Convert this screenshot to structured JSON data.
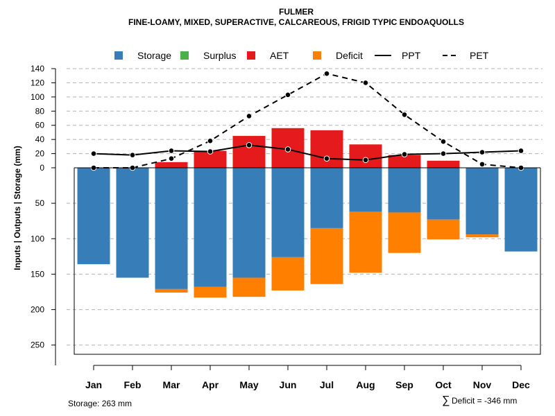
{
  "chart_data": {
    "type": "bar",
    "title": "FULMER",
    "subtitle": "FINE-LOAMY, MIXED, SUPERACTIVE, CALCAREOUS, FRIGID TYPIC ENDOAQUOLLS",
    "ylabel": "Inputs | Outputs | Storage     (mm)",
    "categories": [
      "Jan",
      "Feb",
      "Mar",
      "Apr",
      "May",
      "Jun",
      "Jul",
      "Aug",
      "Sep",
      "Oct",
      "Nov",
      "Dec"
    ],
    "upper_axis": {
      "ylim": [
        0,
        140
      ],
      "ticks": [
        0,
        20,
        40,
        60,
        80,
        100,
        120,
        140
      ]
    },
    "lower_axis": {
      "ylim": [
        0,
        263
      ],
      "ticks": [
        50,
        100,
        150,
        200,
        250
      ]
    },
    "legend": [
      {
        "name": "Storage",
        "kind": "box",
        "color": "#377eb8"
      },
      {
        "name": "Surplus",
        "kind": "box",
        "color": "#4daf4a"
      },
      {
        "name": "AET",
        "kind": "box",
        "color": "#e41a1c"
      },
      {
        "name": "Deficit",
        "kind": "box",
        "color": "#ff7f00"
      },
      {
        "name": "PPT",
        "kind": "solid",
        "color": "#000000"
      },
      {
        "name": "PET",
        "kind": "dashed",
        "color": "#000000"
      }
    ],
    "series": [
      {
        "name": "AET",
        "values": [
          0,
          0,
          8,
          24,
          45,
          56,
          53,
          33,
          18,
          10,
          0,
          0
        ]
      },
      {
        "name": "Storage",
        "values": [
          136,
          155,
          171,
          168,
          155,
          126,
          85,
          62,
          63,
          73,
          94,
          118
        ]
      },
      {
        "name": "Deficit",
        "values": [
          0,
          0,
          5,
          15,
          27,
          47,
          79,
          86,
          57,
          28,
          4,
          0
        ]
      },
      {
        "name": "Surplus",
        "values": [
          0,
          0,
          0,
          0,
          0,
          0,
          0,
          0,
          0,
          0,
          0,
          0
        ]
      },
      {
        "name": "PPT",
        "values": [
          20,
          18,
          24,
          23,
          32,
          26,
          13,
          11,
          19,
          20,
          22,
          24
        ]
      },
      {
        "name": "PET",
        "values": [
          0,
          0,
          13,
          38,
          73,
          103,
          133,
          120,
          75,
          37,
          5,
          0
        ]
      }
    ],
    "notes": {
      "storage": "Storage: 263 mm",
      "deficit": "Deficit = -346 mm",
      "sum_symbol": "∑"
    }
  }
}
